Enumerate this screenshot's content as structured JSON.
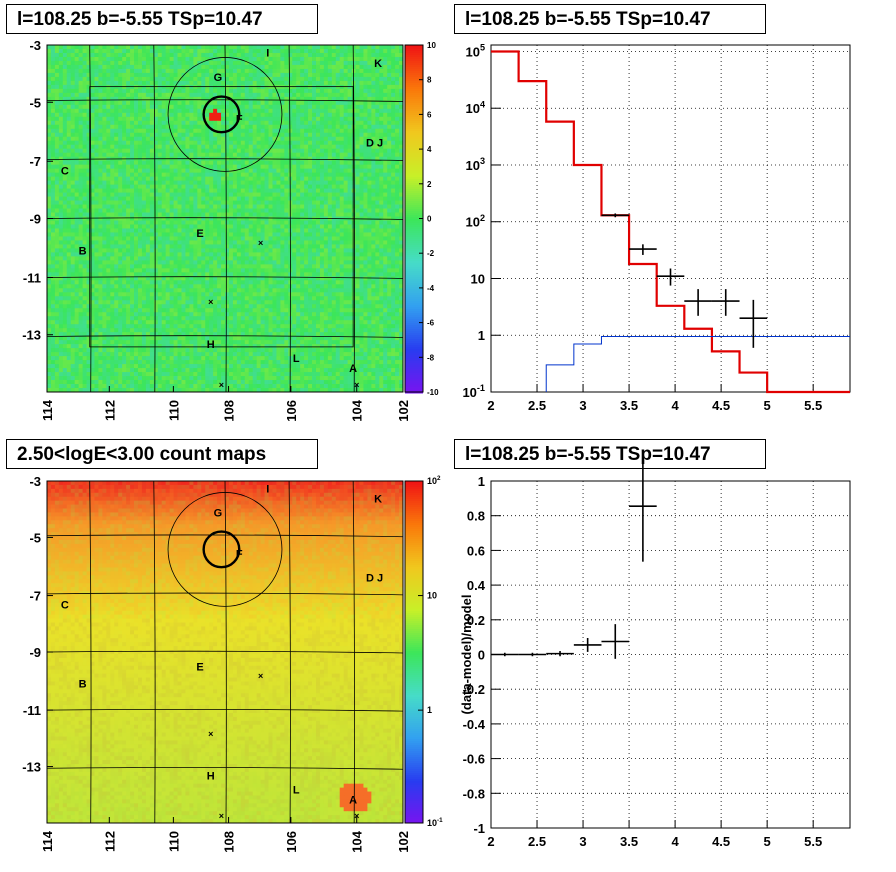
{
  "titles": {
    "tl": "l=108.25 b=-5.55 TSp=10.47",
    "tr": "l=108.25 b=-5.55 TSp=10.47",
    "bl": "2.50<logE<3.00 count maps",
    "br": "l=108.25 b=-5.55 TSp=10.47"
  },
  "colors": {
    "model": "#e00000",
    "data": "#000000",
    "background_model": "#0033cc",
    "tsmap_base": "#3ce65a",
    "counts_top": "#f0281e",
    "counts_mid": "#eadc28",
    "counts_low": "#b4e63c"
  },
  "chart_data": [
    {
      "id": "ts_map",
      "type": "heatmap",
      "title": "l=108.25 b=-5.55 TSp=10.47",
      "x_ticks": [
        "114",
        "112",
        "110",
        "108",
        "106",
        "104",
        "102"
      ],
      "y_ticks": [
        "-3",
        "-5",
        "-7",
        "-9",
        "-11",
        "-13"
      ],
      "colorbar_ticks": [
        "10",
        "8",
        "6",
        "4",
        "2",
        "0",
        "-2",
        "-4",
        "-6",
        "-8",
        "-10"
      ],
      "zlim": [
        -10,
        10
      ],
      "labels": [
        "I",
        "K",
        "G",
        "F",
        "D J",
        "C",
        "E",
        "B",
        "H",
        "L",
        "A"
      ]
    },
    {
      "id": "spectrum",
      "type": "line",
      "title": "l=108.25 b=-5.55 TSp=10.47",
      "log_y": true,
      "xlim": [
        2,
        5.9
      ],
      "ylim": [
        0.1,
        130000
      ],
      "x_ticks": [
        "2",
        "2.5",
        "3",
        "3.5",
        "4",
        "4.5",
        "5",
        "5.5"
      ],
      "y_ticks": [
        {
          "base": "10",
          "exp": "5"
        },
        {
          "base": "10",
          "exp": "4"
        },
        {
          "base": "10",
          "exp": "3"
        },
        {
          "base": "10",
          "exp": "2"
        },
        {
          "base": "10",
          "exp": ""
        },
        {
          "base": "1",
          "exp": ""
        },
        {
          "base": "10",
          "exp": "-1"
        }
      ],
      "model_step": {
        "edges": [
          2,
          2.3,
          2.6,
          2.9,
          3.2,
          3.5,
          3.8,
          4.1,
          4.4,
          4.7,
          5.0,
          5.9
        ],
        "values": [
          100000,
          30000,
          5800,
          1000,
          130,
          18,
          3.3,
          1.3,
          0.52,
          0.22,
          0.1
        ]
      },
      "background_step": {
        "edges": [
          2.6,
          2.9,
          3.2,
          5.9
        ],
        "values": [
          0.3,
          0.7,
          0.95
        ]
      },
      "data_points": [
        {
          "x": 3.35,
          "xerr": 0.15,
          "y": 130,
          "ylo": 120,
          "yhi": 140
        },
        {
          "x": 3.65,
          "xerr": 0.15,
          "y": 33,
          "ylo": 26,
          "yhi": 40
        },
        {
          "x": 3.95,
          "xerr": 0.15,
          "y": 11,
          "ylo": 7.5,
          "yhi": 15
        },
        {
          "x": 4.25,
          "xerr": 0.15,
          "y": 4,
          "ylo": 2.2,
          "yhi": 6.5
        },
        {
          "x": 4.55,
          "xerr": 0.15,
          "y": 4,
          "ylo": 2.2,
          "yhi": 6.5
        },
        {
          "x": 4.85,
          "xerr": 0.15,
          "y": 2,
          "ylo": 0.6,
          "yhi": 4.2
        }
      ]
    },
    {
      "id": "count_map",
      "type": "heatmap",
      "title": "2.50<logE<3.00 count maps",
      "x_ticks": [
        "114",
        "112",
        "110",
        "108",
        "106",
        "104",
        "102"
      ],
      "y_ticks": [
        "-3",
        "-5",
        "-7",
        "-9",
        "-11",
        "-13"
      ],
      "colorbar_ticks": [
        {
          "base": "10",
          "exp": "2"
        },
        {
          "base": "10",
          "exp": ""
        },
        {
          "base": "1",
          "exp": ""
        },
        {
          "base": "10",
          "exp": "-1"
        }
      ],
      "log_z": true,
      "labels": [
        "I",
        "K",
        "G",
        "F",
        "D J",
        "C",
        "E",
        "B",
        "H",
        "L",
        "A"
      ]
    },
    {
      "id": "residuals",
      "type": "scatter",
      "title": "l=108.25 b=-5.55 TSp=10.47",
      "ylabel": "(data-model)/model",
      "xlim": [
        2,
        5.9
      ],
      "ylim": [
        -1,
        1
      ],
      "x_ticks": [
        "2",
        "2.5",
        "3",
        "3.5",
        "4",
        "4.5",
        "5",
        "5.5"
      ],
      "y_ticks": [
        "1",
        "0.8",
        "0.6",
        "0.4",
        "0.2",
        "0",
        "-0.2",
        "-0.4",
        "-0.6",
        "-0.8",
        "-1"
      ],
      "data_points": [
        {
          "x": 2.15,
          "xerr": 0.15,
          "y": 0.0,
          "yerr": 0.01
        },
        {
          "x": 2.45,
          "xerr": 0.15,
          "y": 0.0,
          "yerr": 0.01
        },
        {
          "x": 2.75,
          "xerr": 0.15,
          "y": 0.005,
          "yerr": 0.015
        },
        {
          "x": 3.05,
          "xerr": 0.15,
          "y": 0.055,
          "yerr": 0.04
        },
        {
          "x": 3.35,
          "xerr": 0.15,
          "y": 0.075,
          "yerr": 0.1
        },
        {
          "x": 3.65,
          "xerr": 0.15,
          "y": 0.855,
          "yerr": 0.32
        }
      ]
    }
  ]
}
